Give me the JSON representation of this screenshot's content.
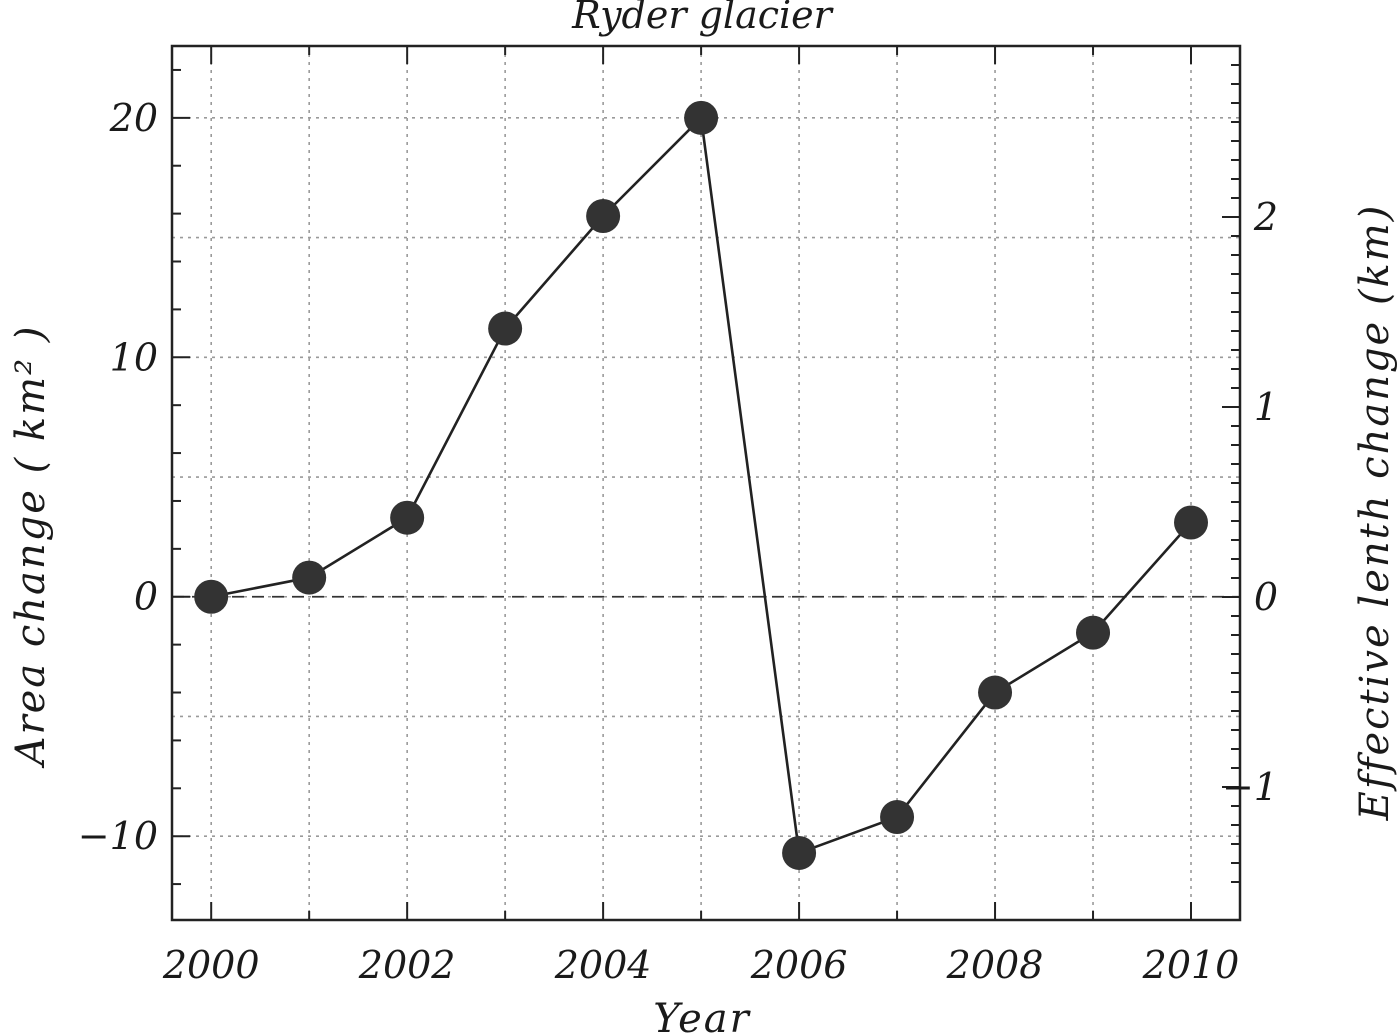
{
  "chart_data": {
    "type": "line",
    "title": "Ryder glacier",
    "xlabel": "Year",
    "ylabel": "Area change  ( km² )",
    "y2label": "Effective lenth change (km)",
    "xlim": [
      1999.6,
      2010.5
    ],
    "ylim": [
      -13.5,
      23
    ],
    "y2lim": [
      -1.7,
      2.9
    ],
    "xticks": [
      2000,
      2002,
      2004,
      2006,
      2008,
      2010
    ],
    "xtick_labels": [
      "2000",
      "2002",
      "2004",
      "2006",
      "2008",
      "2010"
    ],
    "yticks": [
      -10,
      0,
      10,
      20
    ],
    "ytick_labels": [
      "−10",
      "0",
      "10",
      "20"
    ],
    "y2ticks": [
      -1,
      0,
      1,
      2
    ],
    "y2tick_labels": [
      "−1",
      "0",
      "1",
      "2"
    ],
    "xgrid": [
      2000,
      2001,
      2002,
      2003,
      2004,
      2005,
      2006,
      2007,
      2008,
      2009,
      2010
    ],
    "ygrid": [
      -10,
      -5,
      0,
      5,
      10,
      15,
      20
    ],
    "grid": true,
    "zero_line": true,
    "series": [
      {
        "x": [
          2000,
          2001,
          2002,
          2003,
          2004,
          2005,
          2006,
          2007,
          2008,
          2009,
          2010
        ],
        "y": [
          0,
          0.8,
          3.3,
          11.2,
          15.9,
          20,
          -10.7,
          -9.2,
          -4,
          -1.5,
          3.1
        ]
      }
    ]
  }
}
